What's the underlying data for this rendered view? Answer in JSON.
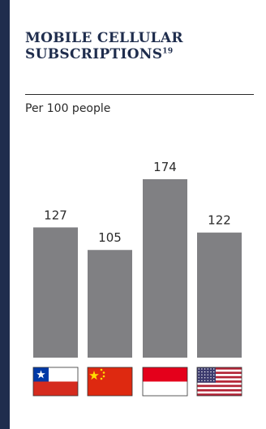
{
  "header": {
    "title": "MOBILE CELLULAR SUBSCRIPTIONS",
    "footnote": "19",
    "subtitle": "Per 100 people"
  },
  "chart_data": {
    "type": "bar",
    "title": "MOBILE CELLULAR SUBSCRIPTIONS",
    "subtitle": "Per 100 people",
    "categories": [
      "Chile",
      "China",
      "Indonesia",
      "United States"
    ],
    "values": [
      127,
      105,
      174,
      122
    ],
    "xlabel": "",
    "ylabel": "",
    "ylim": [
      0,
      174
    ],
    "grid": false,
    "legend": "none",
    "bar_color": "#808083",
    "category_icons": [
      "chile-flag-icon",
      "china-flag-icon",
      "indonesia-flag-icon",
      "usa-flag-icon"
    ]
  },
  "colors": {
    "accent": "#1f2d4d",
    "bar": "#808083",
    "text": "#2a2a2a"
  }
}
